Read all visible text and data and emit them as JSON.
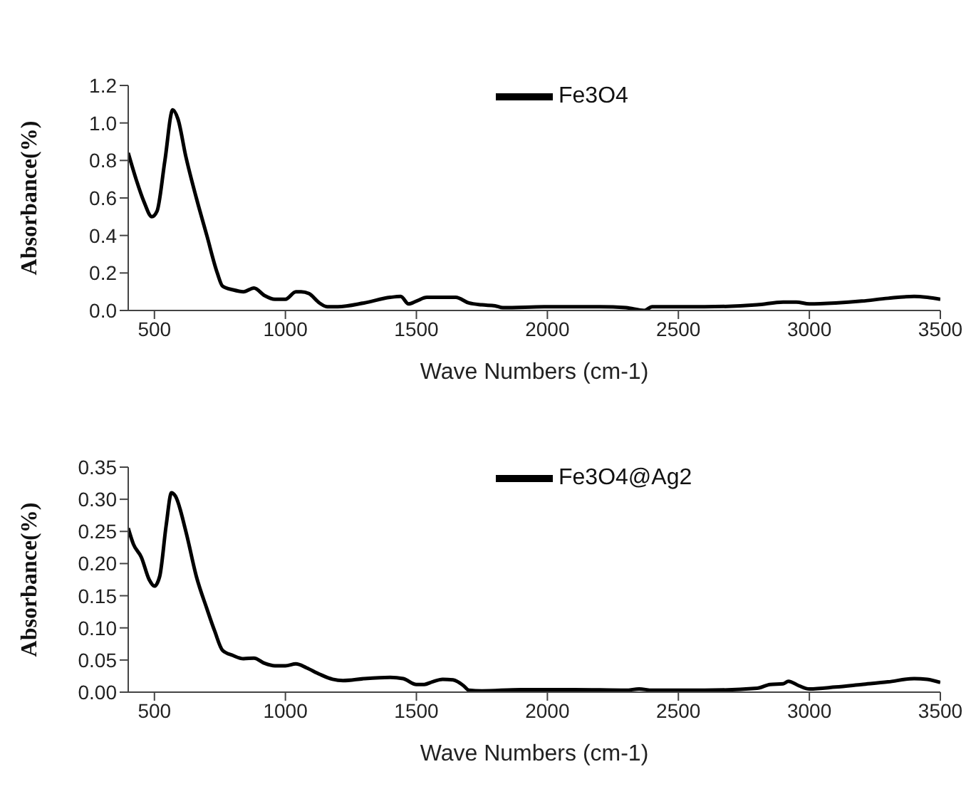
{
  "chart_data": [
    {
      "type": "line",
      "xlabel": "Wave Numbers (cm-1)",
      "ylabel": "Absorbance(%)",
      "legend": "top",
      "xlim": [
        400,
        3500
      ],
      "xticks": [
        500,
        1000,
        1500,
        2000,
        2500,
        3000,
        3500
      ],
      "ylim": [
        0,
        1.2
      ],
      "yticks": [
        {
          "value": 0,
          "label": "0.0"
        },
        {
          "value": 0.2,
          "label": "0.2"
        },
        {
          "value": 0.4,
          "label": "0.4"
        },
        {
          "value": 0.6,
          "label": "0.6"
        },
        {
          "value": 0.8,
          "label": "0.8"
        },
        {
          "value": 1,
          "label": "1.0"
        },
        {
          "value": 1.2,
          "label": "1.2"
        }
      ],
      "series": [
        {
          "name": "Fe3O4",
          "color": "#000000",
          "x": [
            400,
            430,
            460,
            490,
            510,
            540,
            570,
            590,
            620,
            660,
            700,
            740,
            760,
            800,
            840,
            880,
            920,
            960,
            1000,
            1040,
            1060,
            1090,
            1130,
            1160,
            1200,
            1300,
            1400,
            1440,
            1470,
            1500,
            1540,
            1600,
            1650,
            1700,
            1750,
            1800,
            1830,
            2000,
            2200,
            2300,
            2370,
            2400,
            2600,
            2800,
            2900,
            2950,
            3000,
            3100,
            3200,
            3300,
            3400,
            3450,
            3500
          ],
          "values": [
            0.84,
            0.7,
            0.58,
            0.5,
            0.53,
            0.8,
            1.07,
            1.02,
            0.82,
            0.6,
            0.4,
            0.2,
            0.13,
            0.11,
            0.1,
            0.12,
            0.08,
            0.06,
            0.06,
            0.1,
            0.1,
            0.09,
            0.04,
            0.02,
            0.02,
            0.04,
            0.07,
            0.075,
            0.035,
            0.05,
            0.07,
            0.07,
            0.07,
            0.04,
            0.03,
            0.025,
            0.015,
            0.02,
            0.02,
            0.015,
            0.0,
            0.02,
            0.02,
            0.03,
            0.045,
            0.045,
            0.035,
            0.04,
            0.05,
            0.065,
            0.075,
            0.07,
            0.06
          ]
        }
      ]
    },
    {
      "type": "line",
      "xlabel": "Wave Numbers (cm-1)",
      "ylabel": "Absorbance(%)",
      "legend": "top",
      "xlim": [
        400,
        3500
      ],
      "xticks": [
        500,
        1000,
        1500,
        2000,
        2500,
        3000,
        3500
      ],
      "ylim": [
        0,
        0.35
      ],
      "yticks": [
        {
          "value": 0,
          "label": "0.00"
        },
        {
          "value": 0.05,
          "label": "0.05"
        },
        {
          "value": 0.1,
          "label": "0.10"
        },
        {
          "value": 0.15,
          "label": "0.15"
        },
        {
          "value": 0.2,
          "label": "0.20"
        },
        {
          "value": 0.25,
          "label": "0.25"
        },
        {
          "value": 0.3,
          "label": "0.30"
        },
        {
          "value": 0.35,
          "label": "0.35"
        }
      ],
      "series": [
        {
          "name": "Fe3O4@Ag2",
          "color": "#000000",
          "x": [
            400,
            420,
            450,
            480,
            500,
            520,
            545,
            565,
            580,
            620,
            660,
            700,
            730,
            760,
            800,
            840,
            880,
            920,
            960,
            1000,
            1040,
            1080,
            1130,
            1180,
            1220,
            1300,
            1400,
            1450,
            1500,
            1530,
            1560,
            1600,
            1640,
            1680,
            1700,
            1750,
            1900,
            2100,
            2300,
            2350,
            2400,
            2600,
            2800,
            2850,
            2900,
            2920,
            2960,
            3000,
            3100,
            3200,
            3300,
            3400,
            3450,
            3500
          ],
          "values": [
            0.255,
            0.23,
            0.21,
            0.175,
            0.165,
            0.18,
            0.26,
            0.31,
            0.305,
            0.25,
            0.18,
            0.13,
            0.095,
            0.065,
            0.057,
            0.052,
            0.053,
            0.045,
            0.041,
            0.041,
            0.044,
            0.038,
            0.028,
            0.02,
            0.018,
            0.021,
            0.023,
            0.021,
            0.012,
            0.012,
            0.016,
            0.02,
            0.019,
            0.01,
            0.003,
            0.002,
            0.004,
            0.004,
            0.003,
            0.005,
            0.003,
            0.003,
            0.006,
            0.012,
            0.013,
            0.017,
            0.01,
            0.005,
            0.008,
            0.012,
            0.016,
            0.021,
            0.02,
            0.015
          ]
        }
      ]
    }
  ]
}
